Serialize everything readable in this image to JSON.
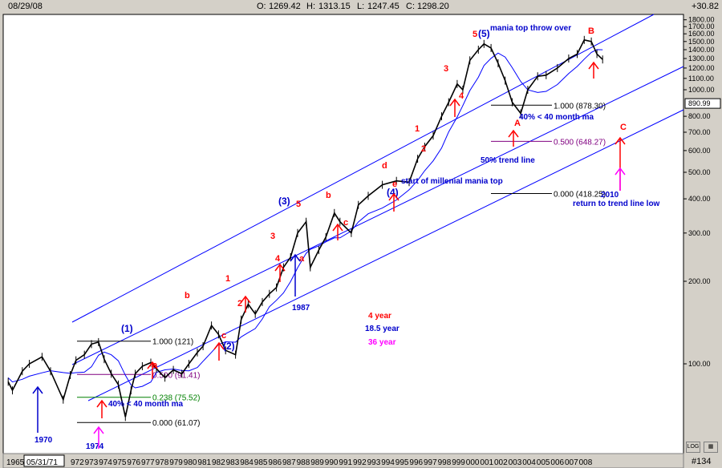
{
  "header": {
    "date": "08/29/08",
    "open_label": "O:",
    "open": "1269.42",
    "high_label": "H:",
    "high": "1313.15",
    "low_label": "L:",
    "low": "1247.45",
    "close_label": "C:",
    "close": "1298.20",
    "change": "+30.82"
  },
  "footer": {
    "year_1965": "1965",
    "cursor_date": "05/31/71",
    "chart_number": "#134",
    "years": [
      "972",
      "973",
      "974",
      "975",
      "976",
      "977",
      "978",
      "979",
      "980",
      "981",
      "982",
      "983",
      "984",
      "985",
      "986",
      "987",
      "988",
      "989",
      "990",
      "991",
      "992",
      "993",
      "994",
      "995",
      "996",
      "997",
      "998",
      "999",
      "000",
      "001",
      "002",
      "003",
      "004",
      "005",
      "006",
      "007",
      "008"
    ]
  },
  "chart_data": {
    "type": "line",
    "scale": "log",
    "y_ticks": [
      "1800.00",
      "1700.00",
      "1600.00",
      "1500.00",
      "1400.00",
      "1300.00",
      "1200.00",
      "1100.00",
      "1000.00",
      "800.00",
      "700.00",
      "600.00",
      "500.00",
      "400.00",
      "300.00",
      "200.00",
      "100.00"
    ],
    "last_price": "890.99",
    "colors": {
      "price": "#000000",
      "ma": "#0000ff",
      "channel": "#0000ff",
      "fib": "#000000",
      "red": "#ff0000",
      "blue": "#0000cc",
      "magenta": "#ff00ff",
      "green": "#008000",
      "purple": "#800080"
    },
    "series": [
      {
        "x": [
          1966.0,
          1966.5,
          1966.8,
          1967.5,
          1968.0,
          1968.9,
          1969.5,
          1970.4,
          1970.9,
          1971.3,
          1971.9,
          1972.4,
          1972.9,
          1973.3,
          1973.8,
          1974.3,
          1974.8,
          1975.2,
          1975.5,
          1976.0,
          1976.6,
          1977.0,
          1977.6,
          1978.2,
          1978.8,
          1979.3,
          1979.9,
          1980.3,
          1980.9,
          1981.4,
          1981.9,
          1982.6,
          1983.0,
          1983.5,
          1984.0,
          1984.5,
          1985.0,
          1985.5,
          1986.0,
          1986.5,
          1987.0,
          1987.6,
          1987.9,
          1988.5,
          1989.0,
          1989.6,
          1990.0,
          1990.8,
          1991.3,
          1992.0,
          1993.0,
          1994.0,
          1994.9,
          1995.5,
          1996.0,
          1996.6,
          1997.2,
          1997.7,
          1998.3,
          1998.7,
          1999.2,
          1999.8,
          2000.2,
          2000.7,
          2001.2,
          2001.7,
          2002.2,
          2002.8,
          2003.3,
          2004.0,
          2004.6,
          2005.4,
          2006.2,
          2006.8,
          2007.3,
          2007.8,
          2008.2,
          2008.6
        ],
        "values": [
          92,
          86,
          80,
          94,
          100,
          106,
          94,
          74,
          91,
          103,
          108,
          118,
          120,
          104,
          92,
          84,
          64,
          80,
          92,
          98,
          101,
          96,
          89,
          95,
          92,
          100,
          110,
          116,
          138,
          128,
          112,
          108,
          145,
          165,
          152,
          168,
          180,
          190,
          225,
          245,
          300,
          330,
          225,
          260,
          290,
          355,
          330,
          300,
          380,
          410,
          450,
          465,
          460,
          560,
          620,
          680,
          800,
          900,
          1050,
          1000,
          1280,
          1400,
          1470,
          1420,
          1250,
          1080,
          900,
          820,
          1000,
          1120,
          1130,
          1200,
          1300,
          1350,
          1520,
          1500,
          1350,
          1290
        ]
      }
    ],
    "fib_levels": [
      {
        "label": "1.000 (121)",
        "value": 121
      },
      {
        "label": "0.500 (91.41)",
        "value": 91.41
      },
      {
        "label": "0.238 (75.52)",
        "value": 75.52
      },
      {
        "label": "0.000 (61.07)",
        "value": 61.07
      },
      {
        "label": "1.000 (878.30)",
        "value": 878.3
      },
      {
        "label": "0.500 (648.27)",
        "value": 648.27
      },
      {
        "label": "0.000 (418.25)",
        "value": 418.25
      }
    ],
    "annotations": {
      "wave_red": [
        "b",
        "c",
        "1",
        "2",
        "3",
        "4",
        "5",
        "a",
        "b",
        "c",
        "d",
        "e",
        "1",
        "2",
        "3",
        "4",
        "5",
        "A",
        "B",
        "C",
        "a"
      ],
      "wave_blue": [
        "(1)",
        "(2)",
        "(3)",
        "(4)",
        "(5)"
      ],
      "notes": [
        "mania top throw over",
        "40% < 40 month ma",
        "50% trend line",
        "start of millenial mania top",
        "40% < 40 month ma",
        "2010",
        "return to trend line low",
        "1970",
        "1974",
        "1987"
      ],
      "legend": [
        "4 year",
        "18.5 year",
        "36 year"
      ]
    }
  }
}
